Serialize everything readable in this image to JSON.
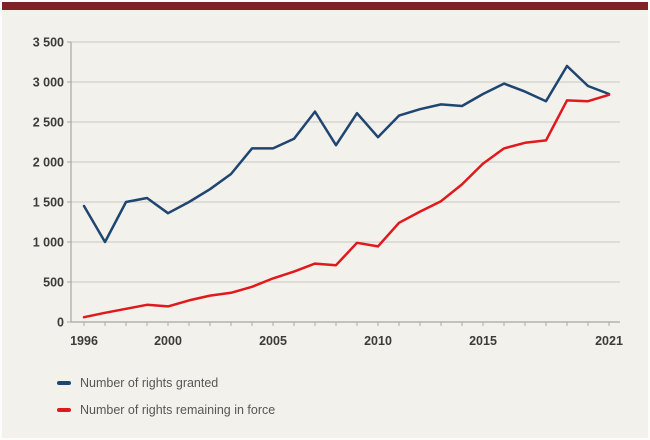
{
  "page": {
    "background": "#f2f1ec",
    "top_bar_color": "#7f2228",
    "frame_color": "#fcfcfa"
  },
  "style": {
    "grid_color": "#c9c7c0",
    "axis_color": "#a8a6a0",
    "tick_color": "#aeaca6",
    "axis_label_color": "#3c3b39",
    "legend_text_color": "#595755"
  },
  "legend": {
    "items": [
      {
        "label": "Number of rights granted",
        "color": "#1f4571"
      },
      {
        "label": "Number of rights remaining in force",
        "color": "#e0191c"
      }
    ]
  },
  "chart_data": {
    "type": "line",
    "title": "",
    "xlabel": "",
    "ylabel": "",
    "grid": true,
    "legend_position": "bottom-left",
    "ylim": [
      0,
      3500
    ],
    "y_tick_step": 500,
    "y_tick_labels": [
      "0",
      "500",
      "1 000",
      "1 500",
      "2 000",
      "2 500",
      "3 000",
      "3 500"
    ],
    "x_tick_years": [
      1996,
      2000,
      2005,
      2010,
      2015,
      2021
    ],
    "x_tick_labels": [
      "1996",
      "2000",
      "2005",
      "2010",
      "2015",
      "2021"
    ],
    "x": [
      1996,
      1997,
      1998,
      1999,
      2000,
      2001,
      2002,
      2003,
      2004,
      2005,
      2006,
      2007,
      2008,
      2009,
      2010,
      2011,
      2012,
      2013,
      2014,
      2015,
      2016,
      2017,
      2018,
      2019,
      2020,
      2021
    ],
    "series": [
      {
        "name": "Number of rights granted",
        "color": "#1f4571",
        "values": [
          1450,
          1000,
          1500,
          1550,
          1360,
          1500,
          1660,
          1850,
          2170,
          2170,
          2290,
          2630,
          2210,
          2610,
          2310,
          2580,
          2660,
          2720,
          2700,
          2850,
          2980,
          2880,
          2760,
          3200,
          2950,
          2850
        ]
      },
      {
        "name": "Number of rights remaining in force",
        "color": "#e0191c",
        "values": [
          60,
          115,
          165,
          215,
          195,
          270,
          330,
          365,
          440,
          545,
          630,
          730,
          710,
          990,
          945,
          1240,
          1380,
          1510,
          1720,
          1980,
          2170,
          2240,
          2270,
          2770,
          2760,
          2840
        ]
      }
    ]
  }
}
